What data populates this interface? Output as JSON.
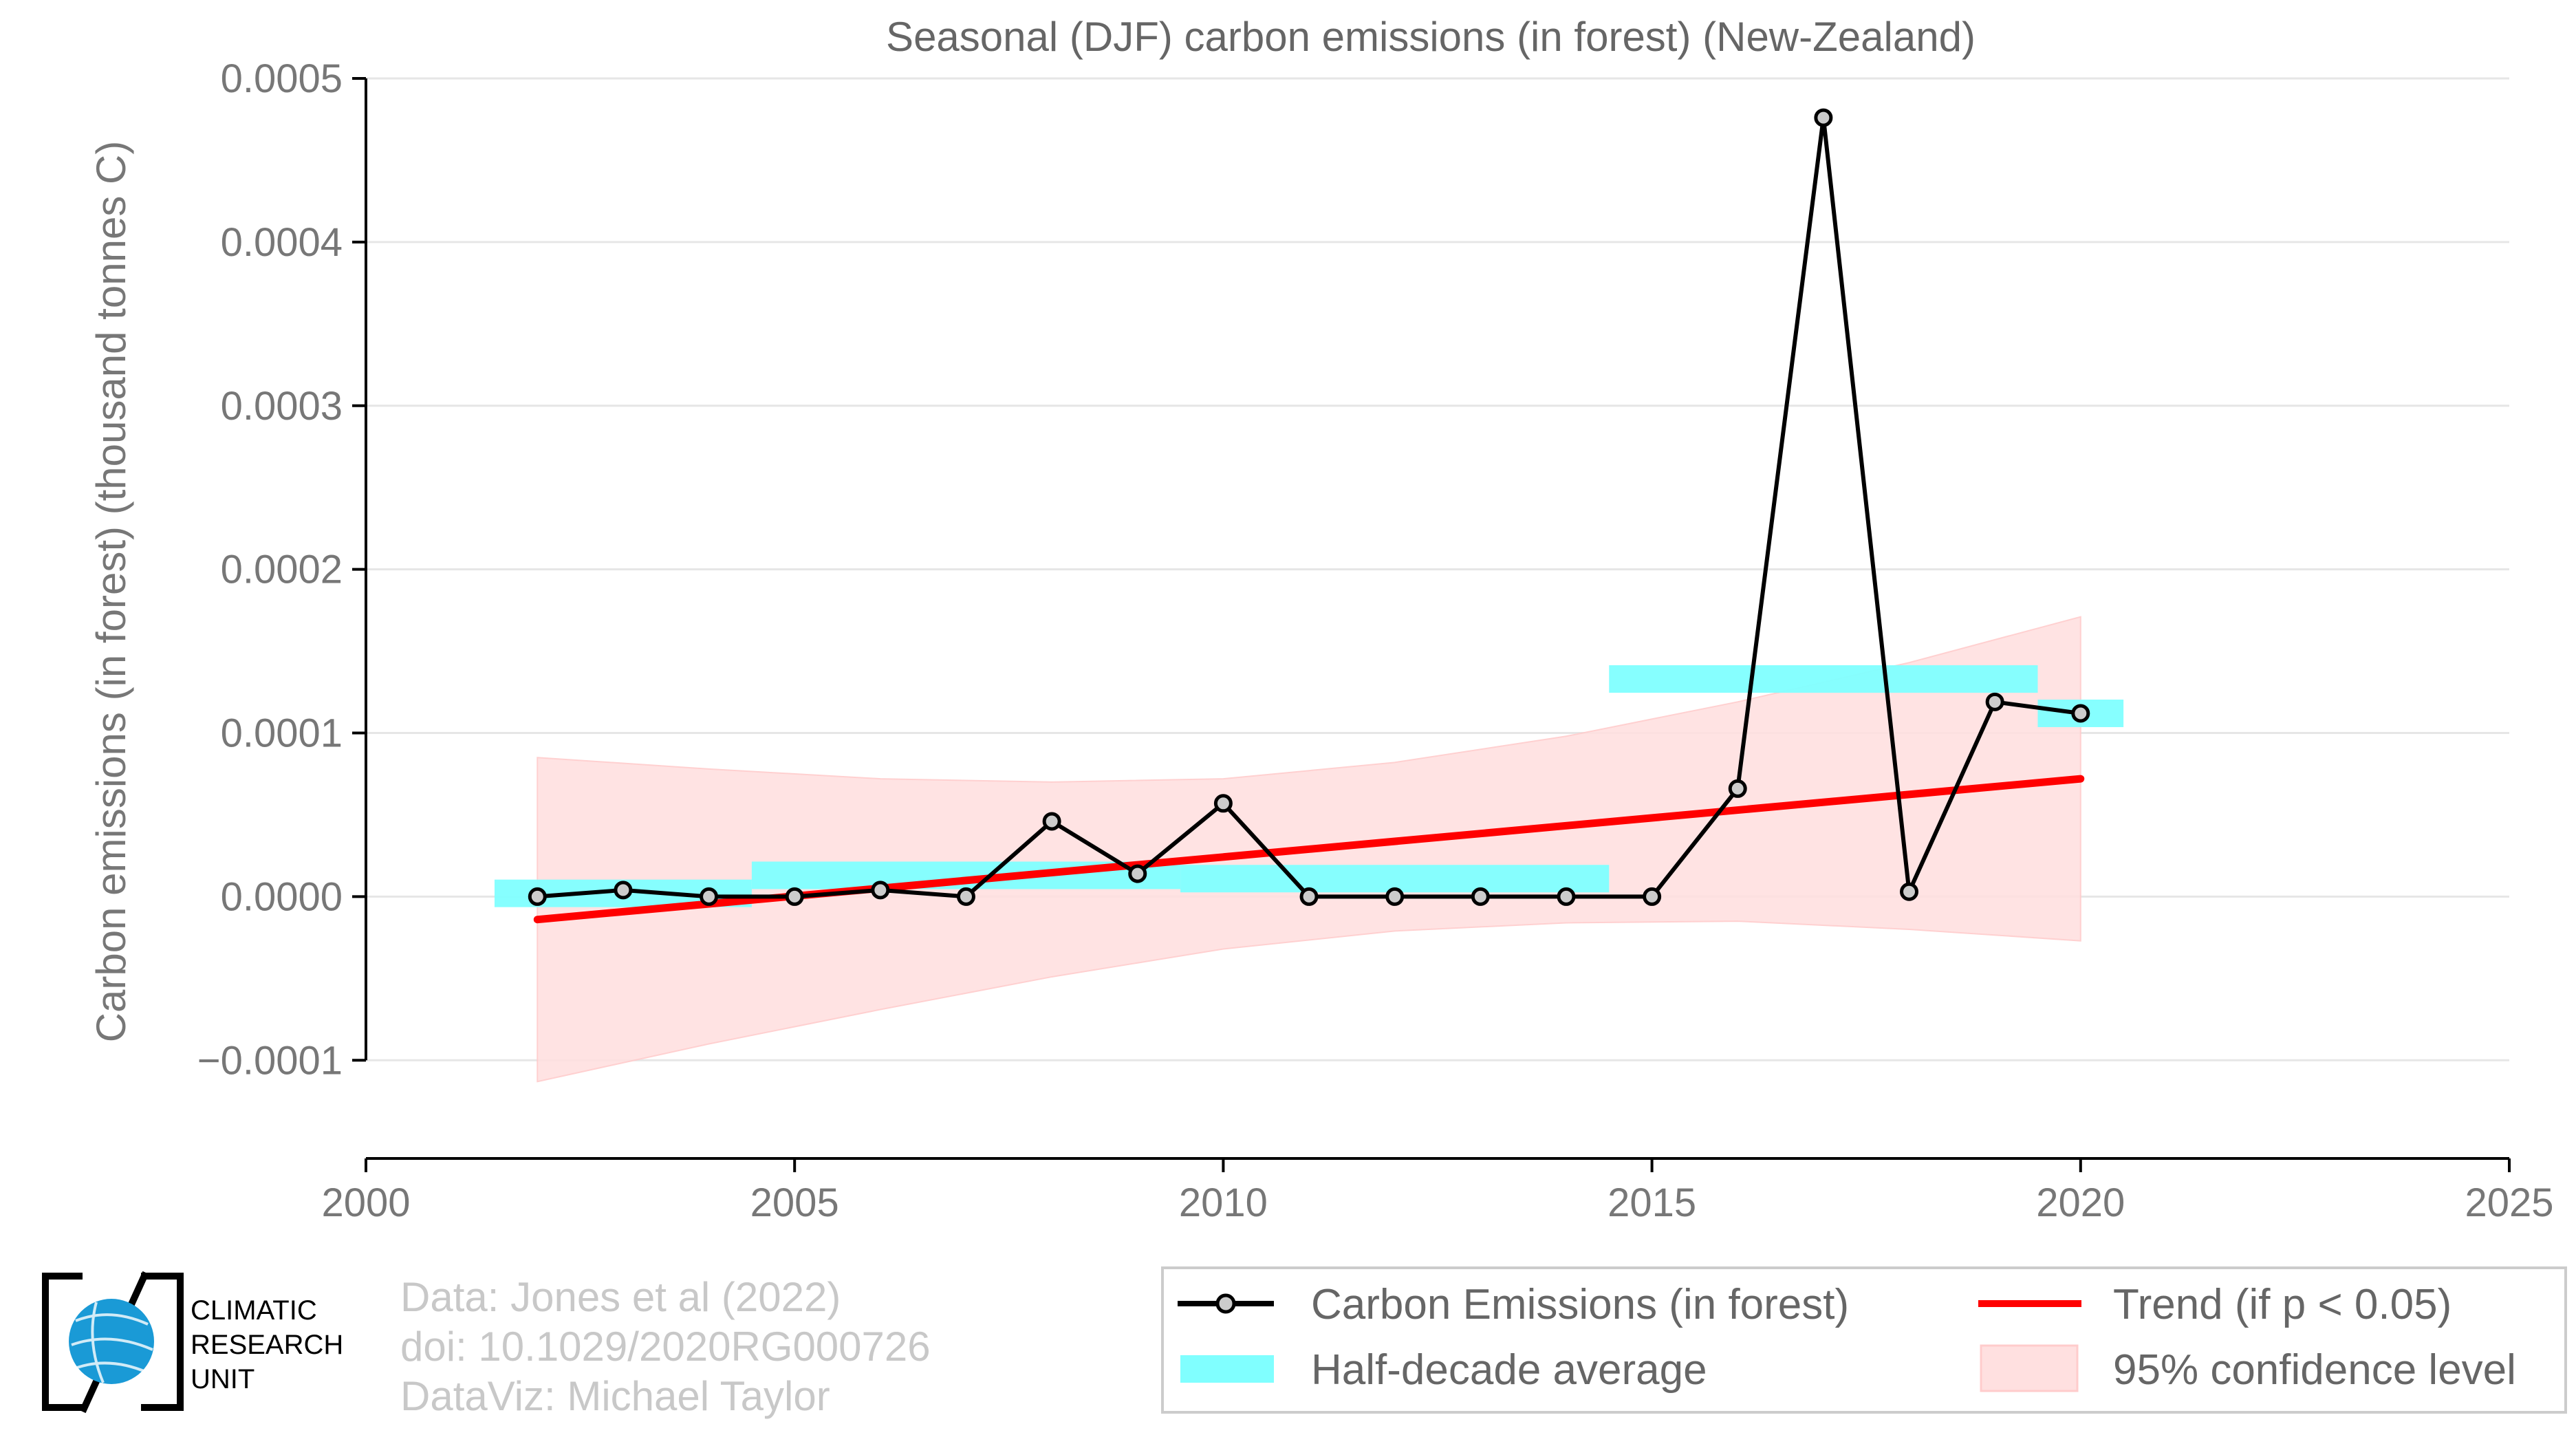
{
  "chart_data": {
    "type": "line",
    "title": "Seasonal (DJF) carbon emissions (in forest) (New-Zealand)",
    "xlabel": "",
    "ylabel": "Carbon emissions (in forest) (thousand tonnes C)",
    "xlim": [
      2000,
      2025
    ],
    "ylim": [
      -0.00016,
      0.0005
    ],
    "x_ticks": [
      2000,
      2005,
      2010,
      2015,
      2020,
      2025
    ],
    "y_ticks": [
      -0.0001,
      0.0,
      0.0001,
      0.0002,
      0.0003,
      0.0004,
      0.0005
    ],
    "y_tick_labels": [
      "−0.0001",
      "0.0000",
      "0.0001",
      "0.0002",
      "0.0003",
      "0.0004",
      "0.0005"
    ],
    "grid": "horizontal",
    "series": [
      {
        "name": "Carbon Emissions (in forest)",
        "x": [
          2002,
          2003,
          2004,
          2005,
          2006,
          2007,
          2008,
          2009,
          2010,
          2011,
          2012,
          2013,
          2014,
          2015,
          2016,
          2017,
          2018,
          2019,
          2020
        ],
        "values": [
          0.0,
          4e-06,
          0.0,
          0.0,
          4e-06,
          0.0,
          4.6e-05,
          1.4e-05,
          5.7e-05,
          0.0,
          0.0,
          0.0,
          0.0,
          0.0,
          6.6e-05,
          0.000476,
          3e-06,
          0.000119,
          0.000112
        ]
      }
    ],
    "half_decade_average": {
      "name": "Half-decade average",
      "segments": [
        {
          "x_start": 2001.5,
          "x_end": 2004.5,
          "value": 2e-06
        },
        {
          "x_start": 2004.5,
          "x_end": 2009.5,
          "value": 1.3e-05
        },
        {
          "x_start": 2009.5,
          "x_end": 2014.5,
          "value": 1.1e-05
        },
        {
          "x_start": 2014.5,
          "x_end": 2019.5,
          "value": 0.000133
        },
        {
          "x_start": 2019.5,
          "x_end": 2020.5,
          "value": 0.000112
        }
      ]
    },
    "trend": {
      "name": "Trend (if p < 0.05)",
      "x": [
        2002,
        2020
      ],
      "values": [
        -1.4e-05,
        7.2e-05
      ]
    },
    "confidence_band": {
      "name": "95% confidence level",
      "x": [
        2002,
        2004,
        2006,
        2008,
        2010,
        2012,
        2014,
        2016,
        2018,
        2020
      ],
      "upper": [
        8.5e-05,
        7.8e-05,
        7.2e-05,
        7e-05,
        7.2e-05,
        8.2e-05,
        9.8e-05,
        0.000119,
        0.000143,
        0.000171
      ],
      "lower": [
        -0.000113,
        -9e-05,
        -6.9e-05,
        -4.9e-05,
        -3.2e-05,
        -2.1e-05,
        -1.6e-05,
        -1.5e-05,
        -2e-05,
        -2.7e-05
      ]
    },
    "legend_position": "bottom-right"
  },
  "credits": {
    "line1": "Data: Jones et al (2022)",
    "line2": "doi: 10.1029/2020RG000726",
    "line3": "DataViz: Michael Taylor"
  },
  "logo": {
    "line1": "CLIMATIC",
    "line2": "RESEARCH",
    "line3": "UNIT"
  },
  "colors": {
    "line": "#000000",
    "marker_fill": "#cccccc",
    "trend": "#ff0000",
    "half_decade": "#80ffff",
    "confidence": "#ffe0e0",
    "grid": "#e6e6e6",
    "logo_blue": "#1a9ad6"
  }
}
